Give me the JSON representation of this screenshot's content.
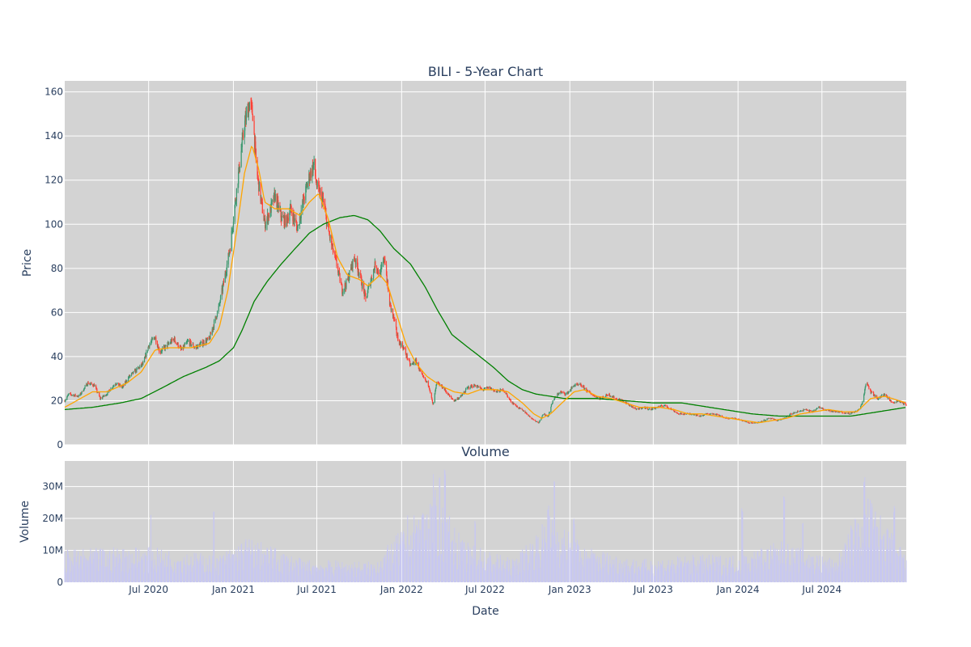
{
  "chart_data": [
    {
      "type": "candlestick",
      "title": "BILI - 5-Year Chart",
      "xlabel": "",
      "ylabel": "Price",
      "ylim": [
        0,
        165
      ],
      "yticks": [
        0,
        20,
        40,
        60,
        80,
        100,
        120,
        140,
        160
      ],
      "x_range": [
        "2020-01-01",
        "2024-12-31"
      ],
      "grid": true,
      "legend": "none",
      "colors": {
        "up": "#3d9970",
        "down": "#ff4136",
        "ma_short": "#ffa500",
        "ma_long": "#008000",
        "plot_bg": "#d3d3d3"
      },
      "close_keyframes": [
        [
          "2020-01-01",
          20
        ],
        [
          "2020-01-10",
          23
        ],
        [
          "2020-02-01",
          22
        ],
        [
          "2020-02-20",
          28
        ],
        [
          "2020-03-05",
          27
        ],
        [
          "2020-03-18",
          21
        ],
        [
          "2020-04-01",
          23
        ],
        [
          "2020-04-20",
          28
        ],
        [
          "2020-05-05",
          26
        ],
        [
          "2020-05-20",
          31
        ],
        [
          "2020-06-05",
          34
        ],
        [
          "2020-06-20",
          37
        ],
        [
          "2020-07-01",
          45
        ],
        [
          "2020-07-15",
          49
        ],
        [
          "2020-07-25",
          42
        ],
        [
          "2020-08-10",
          45
        ],
        [
          "2020-08-25",
          48
        ],
        [
          "2020-09-10",
          43
        ],
        [
          "2020-09-25",
          47
        ],
        [
          "2020-10-10",
          44
        ],
        [
          "2020-10-25",
          46
        ],
        [
          "2020-11-10",
          48
        ],
        [
          "2020-11-20",
          55
        ],
        [
          "2020-12-01",
          63
        ],
        [
          "2020-12-15",
          78
        ],
        [
          "2020-12-25",
          90
        ],
        [
          "2021-01-05",
          110
        ],
        [
          "2021-01-15",
          128
        ],
        [
          "2021-01-25",
          145
        ],
        [
          "2021-02-05",
          155
        ],
        [
          "2021-02-12",
          150
        ],
        [
          "2021-02-20",
          125
        ],
        [
          "2021-03-01",
          112
        ],
        [
          "2021-03-10",
          100
        ],
        [
          "2021-03-20",
          105
        ],
        [
          "2021-04-01",
          113
        ],
        [
          "2021-04-15",
          103
        ],
        [
          "2021-04-25",
          101
        ],
        [
          "2021-05-05",
          107
        ],
        [
          "2021-05-20",
          98
        ],
        [
          "2021-06-01",
          110
        ],
        [
          "2021-06-15",
          122
        ],
        [
          "2021-06-25",
          127
        ],
        [
          "2021-07-01",
          117
        ],
        [
          "2021-07-15",
          110
        ],
        [
          "2021-07-25",
          98
        ],
        [
          "2021-08-05",
          88
        ],
        [
          "2021-08-15",
          80
        ],
        [
          "2021-08-25",
          70
        ],
        [
          "2021-09-05",
          74
        ],
        [
          "2021-09-20",
          85
        ],
        [
          "2021-10-01",
          78
        ],
        [
          "2021-10-15",
          66
        ],
        [
          "2021-10-25",
          74
        ],
        [
          "2021-11-05",
          82
        ],
        [
          "2021-11-15",
          77
        ],
        [
          "2021-11-25",
          85
        ],
        [
          "2021-12-05",
          65
        ],
        [
          "2021-12-15",
          57
        ],
        [
          "2021-12-25",
          47
        ],
        [
          "2022-01-05",
          44
        ],
        [
          "2022-01-20",
          36
        ],
        [
          "2022-02-01",
          38
        ],
        [
          "2022-02-15",
          31
        ],
        [
          "2022-03-01",
          27
        ],
        [
          "2022-03-10",
          18
        ],
        [
          "2022-03-18",
          28
        ],
        [
          "2022-04-01",
          26
        ],
        [
          "2022-04-15",
          22
        ],
        [
          "2022-04-25",
          20
        ],
        [
          "2022-05-10",
          22
        ],
        [
          "2022-05-25",
          26
        ],
        [
          "2022-06-10",
          27
        ],
        [
          "2022-06-25",
          25
        ],
        [
          "2022-07-10",
          26
        ],
        [
          "2022-07-25",
          24
        ],
        [
          "2022-08-10",
          25
        ],
        [
          "2022-08-25",
          20
        ],
        [
          "2022-09-10",
          17
        ],
        [
          "2022-09-25",
          15
        ],
        [
          "2022-10-10",
          12
        ],
        [
          "2022-10-25",
          10
        ],
        [
          "2022-11-05",
          14
        ],
        [
          "2022-11-15",
          13
        ],
        [
          "2022-11-25",
          20
        ],
        [
          "2022-12-10",
          24
        ],
        [
          "2022-12-25",
          23
        ],
        [
          "2023-01-10",
          27
        ],
        [
          "2023-01-25",
          27
        ],
        [
          "2023-02-10",
          24
        ],
        [
          "2023-02-25",
          22
        ],
        [
          "2023-03-10",
          21
        ],
        [
          "2023-03-25",
          23
        ],
        [
          "2023-04-10",
          21
        ],
        [
          "2023-04-25",
          20
        ],
        [
          "2023-05-10",
          18
        ],
        [
          "2023-05-25",
          16
        ],
        [
          "2023-06-10",
          17
        ],
        [
          "2023-06-25",
          16
        ],
        [
          "2023-07-10",
          17
        ],
        [
          "2023-07-25",
          18
        ],
        [
          "2023-08-10",
          16
        ],
        [
          "2023-08-25",
          14
        ],
        [
          "2023-09-10",
          14
        ],
        [
          "2023-09-25",
          14
        ],
        [
          "2023-10-10",
          13
        ],
        [
          "2023-10-25",
          14
        ],
        [
          "2023-11-10",
          14
        ],
        [
          "2023-11-25",
          13
        ],
        [
          "2023-12-10",
          12
        ],
        [
          "2023-12-25",
          12
        ],
        [
          "2024-01-10",
          11
        ],
        [
          "2024-01-25",
          10
        ],
        [
          "2024-02-10",
          10
        ],
        [
          "2024-02-25",
          11
        ],
        [
          "2024-03-10",
          12
        ],
        [
          "2024-03-25",
          11
        ],
        [
          "2024-04-10",
          12
        ],
        [
          "2024-04-25",
          14
        ],
        [
          "2024-05-10",
          15
        ],
        [
          "2024-05-25",
          16
        ],
        [
          "2024-06-10",
          15
        ],
        [
          "2024-06-25",
          17
        ],
        [
          "2024-07-10",
          16
        ],
        [
          "2024-07-25",
          15
        ],
        [
          "2024-08-10",
          15
        ],
        [
          "2024-08-25",
          14
        ],
        [
          "2024-09-10",
          15
        ],
        [
          "2024-09-20",
          16
        ],
        [
          "2024-09-28",
          20
        ],
        [
          "2024-10-05",
          29
        ],
        [
          "2024-10-15",
          24
        ],
        [
          "2024-10-30",
          21
        ],
        [
          "2024-11-15",
          23
        ],
        [
          "2024-11-30",
          19
        ],
        [
          "2024-12-15",
          20
        ],
        [
          "2024-12-31",
          18
        ]
      ],
      "ma_short_keyframes": [
        [
          "2020-01-01",
          17
        ],
        [
          "2020-03-01",
          24
        ],
        [
          "2020-04-01",
          24
        ],
        [
          "2020-05-15",
          28
        ],
        [
          "2020-06-15",
          33
        ],
        [
          "2020-07-15",
          43
        ],
        [
          "2020-08-15",
          44
        ],
        [
          "2020-10-01",
          44
        ],
        [
          "2020-11-10",
          46
        ],
        [
          "2020-12-01",
          53
        ],
        [
          "2020-12-20",
          70
        ],
        [
          "2021-01-10",
          100
        ],
        [
          "2021-01-25",
          123
        ],
        [
          "2021-02-10",
          136
        ],
        [
          "2021-02-25",
          125
        ],
        [
          "2021-03-10",
          110
        ],
        [
          "2021-04-01",
          107
        ],
        [
          "2021-05-01",
          107
        ],
        [
          "2021-05-25",
          104
        ],
        [
          "2021-06-15",
          110
        ],
        [
          "2021-07-05",
          114
        ],
        [
          "2021-07-25",
          103
        ],
        [
          "2021-08-15",
          85
        ],
        [
          "2021-09-05",
          77
        ],
        [
          "2021-10-01",
          75
        ],
        [
          "2021-10-20",
          72
        ],
        [
          "2021-11-15",
          77
        ],
        [
          "2021-12-01",
          73
        ],
        [
          "2021-12-20",
          60
        ],
        [
          "2022-01-10",
          46
        ],
        [
          "2022-02-01",
          37
        ],
        [
          "2022-02-25",
          31
        ],
        [
          "2022-03-25",
          27
        ],
        [
          "2022-04-25",
          24
        ],
        [
          "2022-05-25",
          23
        ],
        [
          "2022-06-20",
          25
        ],
        [
          "2022-07-25",
          25
        ],
        [
          "2022-08-20",
          24
        ],
        [
          "2022-09-20",
          19
        ],
        [
          "2022-10-15",
          14
        ],
        [
          "2022-11-01",
          12
        ],
        [
          "2022-11-20",
          14
        ],
        [
          "2022-12-15",
          19
        ],
        [
          "2023-01-10",
          24
        ],
        [
          "2023-02-01",
          25
        ],
        [
          "2023-03-01",
          22
        ],
        [
          "2023-04-01",
          21
        ],
        [
          "2023-05-01",
          19
        ],
        [
          "2023-06-01",
          17
        ],
        [
          "2023-07-15",
          17
        ],
        [
          "2023-08-15",
          16
        ],
        [
          "2023-09-15",
          14
        ],
        [
          "2023-10-15",
          14
        ],
        [
          "2023-11-15",
          13
        ],
        [
          "2023-12-15",
          12
        ],
        [
          "2024-01-15",
          11
        ],
        [
          "2024-02-15",
          10
        ],
        [
          "2024-03-15",
          11
        ],
        [
          "2024-04-15",
          12
        ],
        [
          "2024-05-15",
          14
        ],
        [
          "2024-06-15",
          15
        ],
        [
          "2024-07-15",
          16
        ],
        [
          "2024-08-15",
          15
        ],
        [
          "2024-09-15",
          15
        ],
        [
          "2024-10-15",
          21
        ],
        [
          "2024-11-15",
          22
        ],
        [
          "2024-12-31",
          19
        ]
      ],
      "ma_long_keyframes": [
        [
          "2020-01-01",
          16
        ],
        [
          "2020-03-01",
          17
        ],
        [
          "2020-05-01",
          19
        ],
        [
          "2020-06-15",
          21
        ],
        [
          "2020-08-01",
          26
        ],
        [
          "2020-09-15",
          31
        ],
        [
          "2020-11-01",
          35
        ],
        [
          "2020-12-01",
          38
        ],
        [
          "2021-01-01",
          44
        ],
        [
          "2021-01-20",
          52
        ],
        [
          "2021-02-15",
          65
        ],
        [
          "2021-03-15",
          74
        ],
        [
          "2021-04-15",
          82
        ],
        [
          "2021-05-15",
          89
        ],
        [
          "2021-06-15",
          96
        ],
        [
          "2021-07-15",
          100
        ],
        [
          "2021-08-20",
          103
        ],
        [
          "2021-09-20",
          104
        ],
        [
          "2021-10-20",
          102
        ],
        [
          "2021-11-15",
          97
        ],
        [
          "2021-12-15",
          89
        ],
        [
          "2022-01-20",
          82
        ],
        [
          "2022-02-20",
          72
        ],
        [
          "2022-03-20",
          61
        ],
        [
          "2022-04-20",
          50
        ],
        [
          "2022-05-20",
          45
        ],
        [
          "2022-06-20",
          40
        ],
        [
          "2022-07-20",
          35
        ],
        [
          "2022-08-20",
          29
        ],
        [
          "2022-09-20",
          25
        ],
        [
          "2022-10-20",
          23
        ],
        [
          "2022-11-20",
          22
        ],
        [
          "2022-12-20",
          21
        ],
        [
          "2023-03-01",
          21
        ],
        [
          "2023-05-01",
          20
        ],
        [
          "2023-07-01",
          19
        ],
        [
          "2023-09-01",
          19
        ],
        [
          "2023-10-01",
          18
        ],
        [
          "2023-12-01",
          16
        ],
        [
          "2024-02-01",
          14
        ],
        [
          "2024-04-01",
          13
        ],
        [
          "2024-06-01",
          13
        ],
        [
          "2024-09-01",
          13
        ],
        [
          "2024-11-01",
          15
        ],
        [
          "2024-12-31",
          17
        ]
      ]
    },
    {
      "type": "bar",
      "title": "Volume",
      "xlabel": "Date",
      "ylabel": "Volume",
      "ylim": [
        0,
        38000000
      ],
      "yticks": [
        0,
        10000000,
        20000000,
        30000000
      ],
      "ytick_labels": [
        "0",
        "10M",
        "20M",
        "30M"
      ],
      "x_range": [
        "2020-01-01",
        "2024-12-31"
      ],
      "xtick_dates": [
        "2020-07-01",
        "2021-01-01",
        "2021-07-01",
        "2022-01-01",
        "2022-07-01",
        "2023-01-01",
        "2023-07-01",
        "2024-01-01",
        "2024-07-01"
      ],
      "xtick_labels": [
        "Jul 2020",
        "Jan 2021",
        "Jul 2021",
        "Jan 2022",
        "Jul 2022",
        "Jan 2023",
        "Jul 2023",
        "Jan 2024",
        "Jul 2024"
      ],
      "grid": true,
      "colors": {
        "bar": "#c8c8f0",
        "plot_bg": "#d3d3d3"
      },
      "volume_keyframes": [
        [
          "2020-01-01",
          7000000
        ],
        [
          "2020-06-01",
          8000000
        ],
        [
          "2020-12-01",
          6000000
        ],
        [
          "2021-02-01",
          10000000
        ],
        [
          "2021-06-01",
          5000000
        ],
        [
          "2021-11-01",
          4500000
        ],
        [
          "2022-03-15",
          20000000
        ],
        [
          "2022-05-15",
          9000000
        ],
        [
          "2022-09-01",
          5000000
        ],
        [
          "2022-11-20",
          15000000
        ],
        [
          "2023-02-01",
          8000000
        ],
        [
          "2023-06-01",
          5000000
        ],
        [
          "2023-10-01",
          6000000
        ],
        [
          "2024-01-01",
          6000000
        ],
        [
          "2024-04-01",
          9000000
        ],
        [
          "2024-08-01",
          5000000
        ],
        [
          "2024-10-05",
          20000000
        ],
        [
          "2024-12-31",
          6000000
        ]
      ],
      "volume_spikes": [
        [
          "2020-11-20",
          24000000
        ],
        [
          "2020-07-05",
          22000000
        ],
        [
          "2022-01-15",
          21000000
        ],
        [
          "2022-03-12",
          34000000
        ],
        [
          "2022-03-25",
          35000000
        ],
        [
          "2022-04-05",
          36000000
        ],
        [
          "2022-06-10",
          20000000
        ],
        [
          "2022-11-15",
          25000000
        ],
        [
          "2022-11-28",
          34000000
        ],
        [
          "2023-01-10",
          20000000
        ],
        [
          "2024-01-10",
          24000000
        ],
        [
          "2024-04-10",
          28000000
        ],
        [
          "2024-05-20",
          20000000
        ],
        [
          "2024-10-01",
          34000000
        ],
        [
          "2024-11-20",
          17000000
        ],
        [
          "2024-12-05",
          24000000
        ]
      ]
    }
  ]
}
